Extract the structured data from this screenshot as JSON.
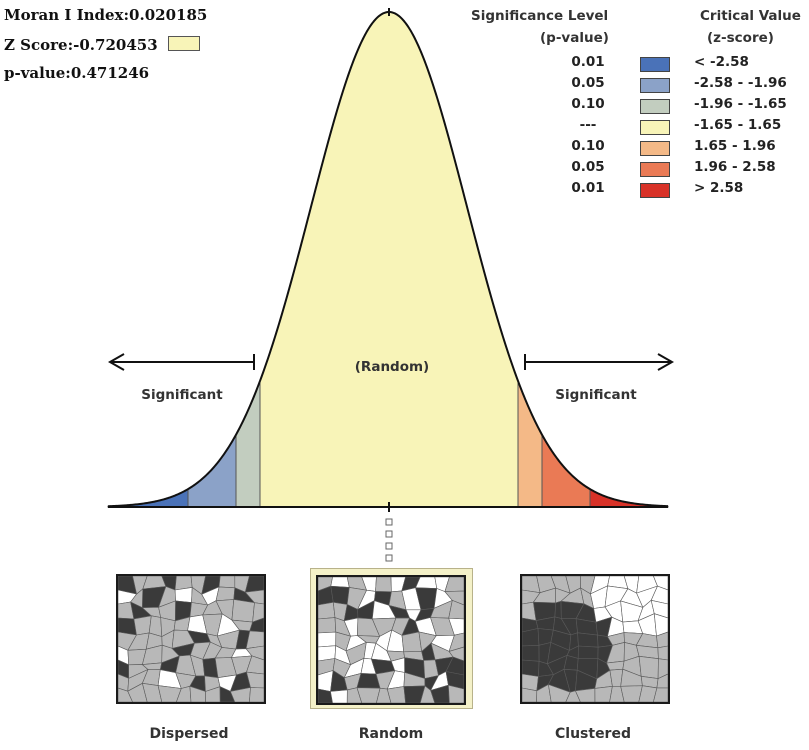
{
  "stats": {
    "moran": "Moran I Index:0.020185",
    "z": "Z Score:-0.720453",
    "p": "p-value:0.471246",
    "z_color": "#f8f4b8"
  },
  "legend": {
    "sig_header_1": "Significance Level",
    "sig_header_2": "(p-value)",
    "crit_header_1": "Critical Value",
    "crit_header_2": "(z-score)",
    "rows": [
      {
        "p": "0.01",
        "z": "< -2.58",
        "color": "#4a72b8"
      },
      {
        "p": "0.05",
        "z": "-2.58 - -1.96",
        "color": "#8ba2c8"
      },
      {
        "p": "0.10",
        "z": "-1.96 - -1.65",
        "color": "#c2cdbf"
      },
      {
        "p": "---",
        "z": "-1.65 - 1.65",
        "color": "#f8f4b8"
      },
      {
        "p": "0.10",
        "z": "1.65 - 1.96",
        "color": "#f4b987"
      },
      {
        "p": "0.05",
        "z": "1.96 - 2.58",
        "color": "#ea7a55"
      },
      {
        "p": "0.01",
        "z": "> 2.58",
        "color": "#d83228"
      }
    ]
  },
  "curve": {
    "center_label": "(Random)",
    "left_label": "Significant",
    "right_label": "Significant"
  },
  "maps": [
    {
      "label": "Dispersed"
    },
    {
      "label": "Random"
    },
    {
      "label": "Clustered"
    }
  ]
}
